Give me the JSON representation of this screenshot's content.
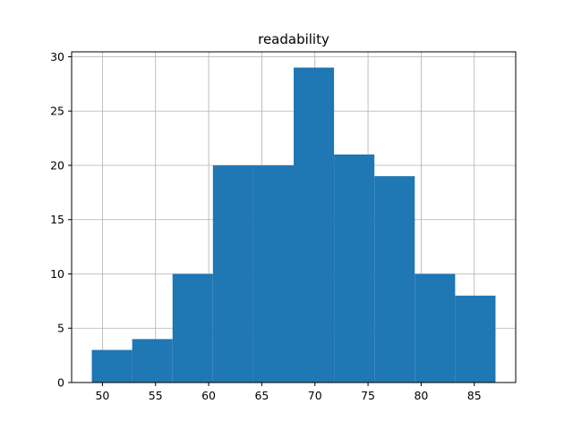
{
  "chart_data": {
    "type": "bar",
    "title": "readability",
    "xlabel": "",
    "ylabel": "",
    "bins": [
      {
        "x0": 49.0,
        "x1": 52.8,
        "count": 3
      },
      {
        "x0": 52.8,
        "x1": 56.6,
        "count": 4
      },
      {
        "x0": 56.6,
        "x1": 60.4,
        "count": 10
      },
      {
        "x0": 60.4,
        "x1": 64.2,
        "count": 20
      },
      {
        "x0": 64.2,
        "x1": 68.0,
        "count": 20
      },
      {
        "x0": 68.0,
        "x1": 71.8,
        "count": 29
      },
      {
        "x0": 71.8,
        "x1": 75.6,
        "count": 21
      },
      {
        "x0": 75.6,
        "x1": 79.4,
        "count": 19
      },
      {
        "x0": 79.4,
        "x1": 83.2,
        "count": 10
      },
      {
        "x0": 83.2,
        "x1": 87.0,
        "count": 8
      }
    ],
    "xlim": [
      47.1,
      88.9
    ],
    "ylim": [
      0,
      30.45
    ],
    "xticks": [
      50,
      55,
      60,
      65,
      70,
      75,
      80,
      85
    ],
    "yticks": [
      0,
      5,
      10,
      15,
      20,
      25,
      30
    ],
    "grid": true,
    "bar_color": "#1f77b4",
    "grid_color": "#b0b0b0"
  }
}
